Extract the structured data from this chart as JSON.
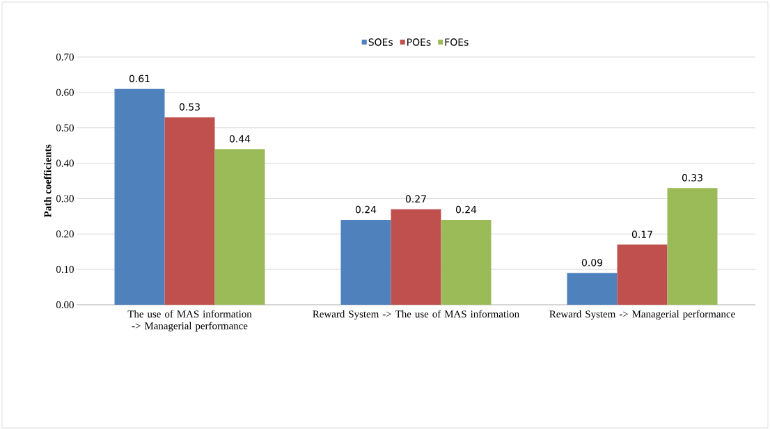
{
  "chart_data": {
    "type": "bar",
    "ylabel": "Path coefficients",
    "categories": [
      "The use of MAS information -> Managerial performance",
      "Reward System -> The use of MAS information",
      "Reward System -> Managerial performance"
    ],
    "series": [
      {
        "name": "SOEs",
        "color": "#4f81bd",
        "values": [
          0.61,
          0.24,
          0.09
        ],
        "value_labels": [
          "0.61",
          "0.24",
          "0.09"
        ]
      },
      {
        "name": "POEs",
        "color": "#c0504d",
        "values": [
          0.53,
          0.27,
          0.17
        ],
        "value_labels": [
          "0.53",
          "0.27",
          "0.17"
        ]
      },
      {
        "name": "FOEs",
        "color": "#9bbb59",
        "values": [
          0.44,
          0.24,
          0.33
        ],
        "value_labels": [
          "0.44",
          "0.24",
          "0.33"
        ]
      }
    ],
    "ylim": [
      0,
      0.7
    ],
    "yticks": [
      {
        "value": 0,
        "label": "0.00"
      },
      {
        "value": 0.1,
        "label": "0.10"
      },
      {
        "value": 0.2,
        "label": "0.20"
      },
      {
        "value": 0.3,
        "label": "0.30"
      },
      {
        "value": 0.4,
        "label": "0.40"
      },
      {
        "value": 0.5,
        "label": "0.50"
      },
      {
        "value": 0.6,
        "label": "0.60"
      },
      {
        "value": 0.7,
        "label": "0.70"
      }
    ],
    "grid": "y",
    "legend": "top"
  }
}
